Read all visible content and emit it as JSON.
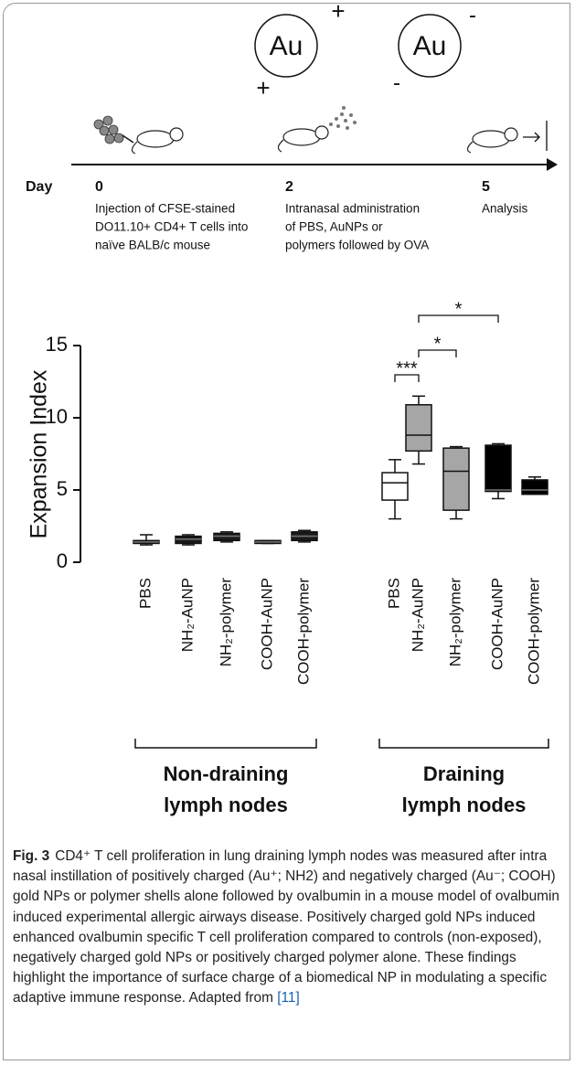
{
  "schematic": {
    "particles": [
      {
        "label": "Au",
        "charge": "+"
      },
      {
        "label": "Au",
        "charge": "-"
      }
    ],
    "day_label": "Day",
    "timeline": [
      {
        "day": "0",
        "text": [
          "Injection of CFSE-stained",
          "DO11.10+ CD4+ T cells into",
          "naïve BALB/c mouse"
        ]
      },
      {
        "day": "2",
        "text": [
          "Intranasal administration",
          "of PBS, AuNPs or",
          "polymers followed by OVA"
        ]
      },
      {
        "day": "5",
        "text": [
          "Analysis"
        ]
      }
    ]
  },
  "chart_data": {
    "type": "box",
    "y_label": "Expansion Index",
    "categories": [
      "PBS",
      "NH₂-AuNP",
      "NH₂-polymer",
      "COOH-AuNP",
      "COOH-polymer",
      "PBS",
      "NH₂-AuNP",
      "NH₂-polymer",
      "COOH-AuNP",
      "COOH-polymer"
    ],
    "boxes": [
      {
        "min": 1.2,
        "q1": 1.3,
        "median": 1.4,
        "q3": 1.5,
        "max": 1.9,
        "color": "#1a1a1a"
      },
      {
        "min": 1.2,
        "q1": 1.3,
        "median": 1.6,
        "q3": 1.8,
        "max": 1.9,
        "color": "#1a1a1a"
      },
      {
        "min": 1.4,
        "q1": 1.5,
        "median": 1.8,
        "q3": 2.0,
        "max": 2.1,
        "color": "#1a1a1a"
      },
      {
        "min": 1.3,
        "q1": 1.3,
        "median": 1.4,
        "q3": 1.5,
        "max": 1.5,
        "color": "#1a1a1a"
      },
      {
        "min": 1.4,
        "q1": 1.5,
        "median": 1.8,
        "q3": 2.1,
        "max": 2.2,
        "color": "#1a1a1a"
      },
      {
        "min": 3.0,
        "q1": 4.3,
        "median": 5.5,
        "q3": 6.2,
        "max": 7.1,
        "color": "#ffffff"
      },
      {
        "min": 6.8,
        "q1": 7.7,
        "median": 8.8,
        "q3": 10.9,
        "max": 11.5,
        "color": "#a6a6a6"
      },
      {
        "min": 3.0,
        "q1": 3.6,
        "median": 6.3,
        "q3": 7.9,
        "max": 8.0,
        "color": "#a6a6a6"
      },
      {
        "min": 4.4,
        "q1": 4.9,
        "median": 5.0,
        "q3": 8.1,
        "max": 8.2,
        "color": "#000000"
      },
      {
        "min": 4.7,
        "q1": 4.7,
        "median": 5.0,
        "q3": 5.7,
        "max": 5.9,
        "color": "#000000"
      }
    ],
    "groups": [
      [
        "Non-draining",
        "lymph nodes"
      ],
      [
        "Draining",
        "lymph nodes"
      ]
    ],
    "annotations": [
      "***",
      "*",
      "*"
    ],
    "ylim": [
      0,
      15
    ],
    "yticks": [
      0,
      5,
      10,
      15
    ]
  },
  "caption": {
    "label": "Fig. 3",
    "text": "CD4⁺ T cell proliferation in lung draining lymph nodes was measured after intra nasal instillation of positively charged (Au⁺; NH2) and negatively charged (Au⁻; COOH) gold NPs or polymer shells alone followed by ovalbumin in a mouse model of ovalbumin induced experimental allergic airways disease. Positively charged gold NPs induced enhanced ovalbumin specific T cell proliferation compared to controls (non-exposed), negatively charged gold NPs or positively charged polymer alone. These findings highlight the importance of surface charge of a biomedical NP in modulating a specific adaptive immune response. Adapted from",
    "ref": "[11]"
  }
}
